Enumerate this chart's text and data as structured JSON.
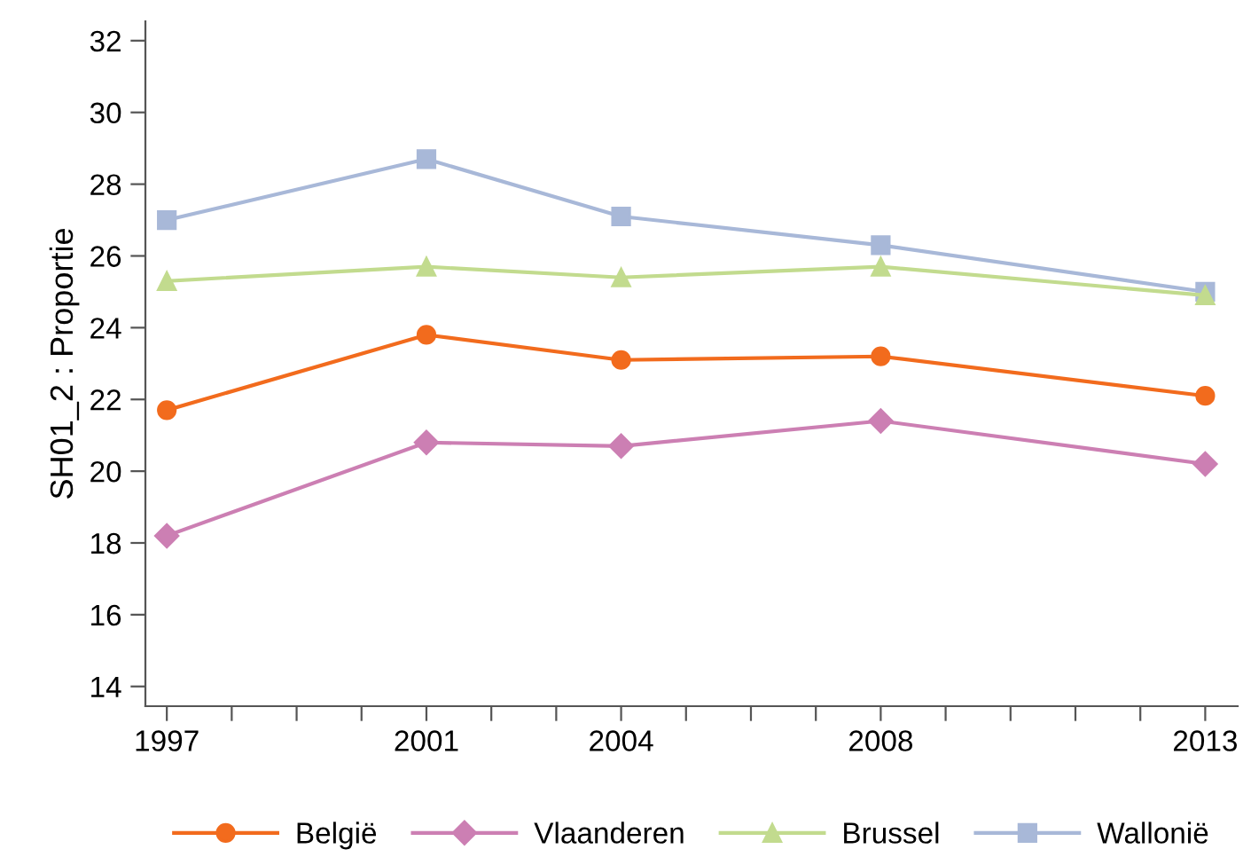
{
  "chart_data": {
    "type": "line",
    "ylabel": "SH01_2 : Proportie",
    "x": [
      1997,
      2001,
      2004,
      2008,
      2013
    ],
    "series": [
      {
        "name": "België",
        "color": "#f26b1d",
        "marker": "circle",
        "values": [
          21.7,
          23.8,
          23.1,
          23.2,
          22.1
        ]
      },
      {
        "name": "Vlaanderen",
        "color": "#cc7fb3",
        "marker": "diamond",
        "values": [
          18.2,
          20.8,
          20.7,
          21.4,
          20.2
        ]
      },
      {
        "name": "Brussel",
        "color": "#c2db8e",
        "marker": "triangle",
        "values": [
          25.3,
          25.7,
          25.4,
          25.7,
          24.9
        ]
      },
      {
        "name": "Wallonië",
        "color": "#a8b8d8",
        "marker": "square",
        "values": [
          27.0,
          28.7,
          27.1,
          26.3,
          25.0
        ]
      }
    ],
    "xlim": [
      1996.67,
      2013.5
    ],
    "xticks": [
      1997,
      {
        "value": 1998,
        "label": null
      },
      {
        "value": 1999,
        "label": null
      },
      {
        "value": 2000,
        "label": null
      },
      2001,
      {
        "value": 2002,
        "label": null
      },
      {
        "value": 2003,
        "label": null
      },
      2004,
      {
        "value": 2005,
        "label": null
      },
      {
        "value": 2006,
        "label": null
      },
      {
        "value": 2007,
        "label": null
      },
      2008,
      {
        "value": 2009,
        "label": null
      },
      {
        "value": 2010,
        "label": null
      },
      {
        "value": 2011,
        "label": null
      },
      {
        "value": 2012,
        "label": null
      },
      2013
    ],
    "ylim": [
      13.45,
      32.54
    ],
    "yticks": [
      14,
      16,
      18,
      20,
      22,
      24,
      26,
      28,
      30,
      32
    ],
    "grid": false,
    "legend": "bottom",
    "line_style": "solid"
  }
}
